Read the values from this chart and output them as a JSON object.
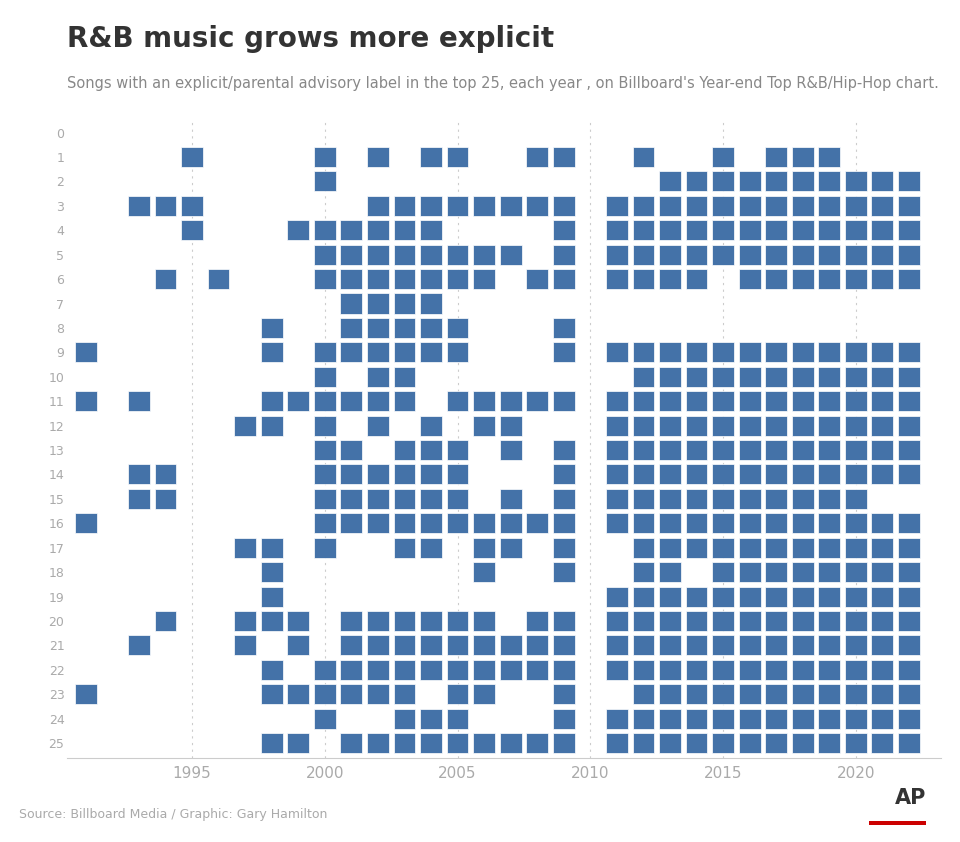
{
  "title": "R&B music grows more explicit",
  "subtitle": "Songs with an explicit/parental advisory label in the top 25, each year , on Billboard's Year-end Top R&B/Hip-Hop chart.",
  "source": "Source: Billboard Media / Graphic: Gary Hamilton",
  "bar_color": "#4472A8",
  "background_color": "#ffffff",
  "yticks": [
    0,
    1,
    2,
    3,
    4,
    5,
    6,
    7,
    8,
    9,
    10,
    11,
    12,
    13,
    14,
    15,
    16,
    17,
    18,
    19,
    20,
    21,
    22,
    23,
    24,
    25
  ],
  "xticks": [
    1995,
    2000,
    2005,
    2010,
    2015,
    2020
  ],
  "explicit_songs": {
    "1991": [
      9,
      11,
      16,
      23
    ],
    "1992": [],
    "1993": [
      3,
      3,
      11,
      14,
      15,
      21
    ],
    "1994": [
      3,
      3,
      6,
      14,
      15,
      20,
      20
    ],
    "1995": [
      1,
      3,
      4
    ],
    "1996": [
      6
    ],
    "1997": [
      12,
      17,
      20,
      21
    ],
    "1998": [
      8,
      9,
      11,
      12,
      17,
      18,
      19,
      20,
      22,
      23,
      25
    ],
    "1999": [
      4,
      11,
      20,
      21,
      23,
      25
    ],
    "2000": [
      1,
      2,
      4,
      5,
      6,
      9,
      10,
      11,
      12,
      13,
      14,
      15,
      16,
      17,
      22,
      23,
      24
    ],
    "2001": [
      4,
      5,
      6,
      7,
      8,
      9,
      11,
      13,
      14,
      15,
      16,
      20,
      21,
      22,
      23,
      25
    ],
    "2002": [
      1,
      3,
      4,
      5,
      6,
      7,
      8,
      9,
      10,
      11,
      12,
      14,
      15,
      16,
      20,
      21,
      22,
      23,
      25
    ],
    "2003": [
      3,
      4,
      5,
      6,
      7,
      8,
      9,
      10,
      11,
      13,
      14,
      15,
      16,
      17,
      20,
      21,
      22,
      23,
      24,
      25
    ],
    "2004": [
      1,
      3,
      4,
      5,
      6,
      7,
      8,
      9,
      12,
      13,
      14,
      15,
      16,
      17,
      20,
      21,
      22,
      24,
      25
    ],
    "2005": [
      1,
      3,
      5,
      6,
      8,
      9,
      11,
      13,
      14,
      15,
      16,
      20,
      21,
      22,
      23,
      24,
      25
    ],
    "2006": [
      3,
      5,
      6,
      11,
      12,
      16,
      17,
      18,
      20,
      21,
      22,
      23,
      25
    ],
    "2007": [
      3,
      5,
      11,
      12,
      13,
      15,
      16,
      17,
      21,
      22,
      25
    ],
    "2008": [
      1,
      3,
      6,
      11,
      16,
      20,
      21,
      22,
      25
    ],
    "2009": [
      1,
      3,
      4,
      5,
      6,
      8,
      9,
      11,
      13,
      14,
      15,
      16,
      17,
      18,
      20,
      21,
      22,
      23,
      24,
      25
    ],
    "2010": [],
    "2011": [
      3,
      3,
      4,
      5,
      6,
      9,
      11,
      12,
      13,
      14,
      15,
      16,
      19,
      20,
      21,
      22,
      24,
      25
    ],
    "2012": [
      1,
      3,
      4,
      5,
      6,
      9,
      10,
      11,
      12,
      13,
      14,
      15,
      16,
      17,
      18,
      19,
      20,
      21,
      22,
      23,
      24,
      25
    ],
    "2013": [
      2,
      3,
      3,
      4,
      5,
      6,
      9,
      10,
      11,
      12,
      13,
      14,
      15,
      16,
      17,
      18,
      19,
      20,
      21,
      22,
      23,
      24,
      25
    ],
    "2014": [
      2,
      3,
      4,
      5,
      6,
      9,
      10,
      11,
      12,
      13,
      14,
      15,
      16,
      17,
      19,
      20,
      21,
      22,
      23,
      24,
      25
    ],
    "2015": [
      1,
      2,
      3,
      3,
      4,
      5,
      9,
      10,
      11,
      12,
      13,
      14,
      15,
      16,
      17,
      18,
      19,
      20,
      21,
      22,
      23,
      24,
      25
    ],
    "2016": [
      2,
      2,
      3,
      4,
      5,
      6,
      9,
      10,
      11,
      12,
      13,
      14,
      15,
      16,
      17,
      18,
      19,
      20,
      21,
      22,
      23,
      24,
      25
    ],
    "2017": [
      1,
      2,
      2,
      3,
      4,
      5,
      6,
      9,
      10,
      11,
      12,
      13,
      14,
      15,
      16,
      17,
      18,
      19,
      20,
      21,
      22,
      23,
      24,
      25
    ],
    "2018": [
      1,
      2,
      3,
      4,
      5,
      6,
      9,
      10,
      11,
      12,
      13,
      14,
      15,
      16,
      17,
      18,
      19,
      20,
      21,
      22,
      23,
      24,
      25
    ],
    "2019": [
      1,
      2,
      2,
      3,
      4,
      5,
      6,
      9,
      10,
      11,
      12,
      13,
      14,
      15,
      16,
      17,
      18,
      19,
      20,
      21,
      22,
      23,
      24,
      25
    ],
    "2020": [
      2,
      3,
      4,
      5,
      6,
      9,
      10,
      11,
      12,
      13,
      14,
      15,
      16,
      17,
      18,
      19,
      20,
      21,
      22,
      23,
      24,
      25
    ],
    "2021": [
      2,
      3,
      4,
      5,
      6,
      9,
      10,
      11,
      12,
      13,
      14,
      16,
      17,
      18,
      19,
      20,
      21,
      22,
      23,
      24,
      25
    ],
    "2022": [
      2,
      3,
      4,
      5,
      6,
      9,
      10,
      11,
      12,
      13,
      14,
      16,
      17,
      18,
      19,
      20,
      21,
      22,
      23,
      24,
      25
    ]
  }
}
